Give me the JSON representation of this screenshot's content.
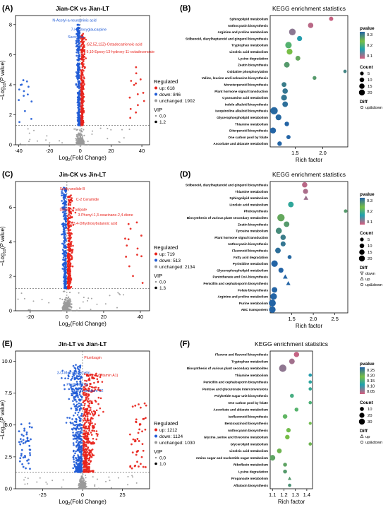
{
  "volcanoes": [
    {
      "panel": "(A)",
      "title": "Jian-CK vs Jian-LT",
      "xticks": [
        "-40",
        "-20",
        "0",
        "20",
        "40"
      ],
      "yticks": [
        "0",
        "2",
        "4",
        "6",
        "8"
      ],
      "xmin": -42,
      "xmax": 45,
      "ymax": 8.6,
      "regulated_title": "Regulated",
      "legend": [
        "up: 618",
        "down: 846",
        "unchanged: 1902"
      ],
      "vip_title": "VIP",
      "vip": [
        "0.0",
        "1.2"
      ],
      "labels": [
        {
          "text": "N-Acetyl-a-neuraminic acid",
          "color": "blue",
          "x": -18,
          "y": 8.2
        },
        {
          "text": "7-Hydroxyglaucarpine",
          "color": "blue",
          "x": -6,
          "y": 7.6
        },
        {
          "text": "Sarcosine",
          "color": "blue",
          "x": -8,
          "y": 7.1
        },
        {
          "text": "(9Z,5Z,12Z)-Octadecatrienoic acid",
          "color": "red",
          "x": 4,
          "y": 6.6
        },
        {
          "text": "9,10-Epoxy-13-hydroxy-11-octadecenoate",
          "color": "red",
          "x": 4,
          "y": 6.1
        }
      ]
    },
    {
      "panel": "(C)",
      "title": "Jin-CK vs Jin-LT",
      "xticks": [
        "-20",
        "0",
        "20",
        "40"
      ],
      "yticks": [
        "0",
        "2",
        "4",
        "6"
      ],
      "xmin": -28,
      "xmax": 45,
      "ymax": 7.5,
      "regulated_title": "Regulated",
      "legend": [
        "up: 719",
        "down: 513",
        "unchanged: 2134"
      ],
      "vip_title": "VIP",
      "vip": [
        "0.0",
        "1.3"
      ],
      "labels": [
        {
          "text": "Senkyunolide B",
          "color": "red",
          "x": -4,
          "y": 7.0
        },
        {
          "text": "C-2 Ceramide",
          "color": "red",
          "x": 5,
          "y": 6.4
        },
        {
          "text": "Dimethyl adipate",
          "color": "red",
          "x": -4,
          "y": 5.8
        },
        {
          "text": "3-Phenyl-1,3-oxazinane-2,4-dione",
          "color": "red",
          "x": 6,
          "y": 5.5
        },
        {
          "text": "(R)-3,4-Dihydroxybutanoic acid",
          "color": "red",
          "x": 0,
          "y": 5.0
        }
      ]
    },
    {
      "panel": "(E)",
      "title": "Jin-LT vs Jian-LT",
      "xticks": [
        "-25",
        "0",
        "25"
      ],
      "yticks": [
        "0.0",
        "2.5",
        "5.0",
        "7.5",
        "10.0"
      ],
      "xmin": -42,
      "xmax": 42,
      "ymax": 10.8,
      "regulated_title": "Regulated",
      "legend": [
        "up: 1212",
        "down: 1124",
        "unchanged: 1030"
      ],
      "vip_title": "VIP",
      "vip": [
        "0.0",
        "1.0"
      ],
      "labels": [
        {
          "text": "Plumbagin",
          "color": "red",
          "x": 1,
          "y": 10.2
        },
        {
          "text": "3-O-Methylquercetin",
          "color": "blue",
          "x": -16,
          "y": 9.0
        },
        {
          "text": "Retinol (Vitamin A1)",
          "color": "red",
          "x": 2,
          "y": 8.8
        },
        {
          "text": "Phellopidin B",
          "color": "blue",
          "x": -10,
          "y": 8.1
        },
        {
          "text": "Tetrasodium C2",
          "color": "blue",
          "x": -3,
          "y": 7.6
        }
      ]
    }
  ],
  "kegg": [
    {
      "panel": "(B)",
      "title": "KEGG enrichment statistics",
      "xlabel": "Rich factor",
      "xticks": [
        "1.5",
        "2.0"
      ],
      "xtick_vals": [
        1.5,
        2.0
      ],
      "xmin": 1.05,
      "xmax": 2.45,
      "pvalue_title": "pvalue",
      "pvalue_ticks": [
        "0.3",
        "0.2",
        "0.1"
      ],
      "count_title": "Count",
      "counts": [
        "5",
        "10",
        "15",
        "20"
      ],
      "diff_title": "Diff",
      "diffs": [
        "up&down"
      ],
      "pathways": [
        {
          "name": "Sphingolipid metabolism",
          "rf": 2.15,
          "count": 4,
          "p": 0.01
        },
        {
          "name": "Anthocyanin biosynthesis",
          "rf": 1.78,
          "count": 8,
          "p": 0.02
        },
        {
          "name": "Arginine and proline metabolism",
          "rf": 1.45,
          "count": 14,
          "p": 0.05
        },
        {
          "name": "Stilbenoid, diarylheptanoid and gingerol biosynthesis",
          "rf": 1.58,
          "count": 7,
          "p": 0.12
        },
        {
          "name": "Tryptophan metabolism",
          "rf": 1.38,
          "count": 13,
          "p": 0.2
        },
        {
          "name": "Linoleic acid metabolism",
          "rf": 1.4,
          "count": 10,
          "p": 0.25
        },
        {
          "name": "Lysine degradation",
          "rf": 1.55,
          "count": 6,
          "p": 0.28
        },
        {
          "name": "Zeatin biosynthesis",
          "rf": 1.35,
          "count": 9,
          "p": 0.3
        },
        {
          "name": "Oxidative phosphorylation",
          "rf": 2.4,
          "count": 2,
          "p": 0.33
        },
        {
          "name": "Valine, leucine and isoleucine biosynthesis",
          "rf": 1.85,
          "count": 3,
          "p": 0.3
        },
        {
          "name": "Monoterpenoid biosynthesis",
          "rf": 1.3,
          "count": 6,
          "p": 0.34
        },
        {
          "name": "Plant hormone signal transduction",
          "rf": 1.32,
          "count": 8,
          "p": 0.35
        },
        {
          "name": "Cyanoamino acid metabolism",
          "rf": 1.3,
          "count": 10,
          "p": 0.35
        },
        {
          "name": "Indole alkaloid biosynthesis",
          "rf": 1.32,
          "count": 9,
          "p": 0.36
        },
        {
          "name": "Isoquinoline alkaloid biosynthesis",
          "rf": 1.12,
          "count": 18,
          "p": 0.37
        },
        {
          "name": "Glycerophospholipid metabolism",
          "rf": 1.2,
          "count": 10,
          "p": 0.37
        },
        {
          "name": "Thiamine metabolism",
          "rf": 1.35,
          "count": 5,
          "p": 0.38
        },
        {
          "name": "Diterpenoid biosynthesis",
          "rf": 1.1,
          "count": 11,
          "p": 0.4
        },
        {
          "name": "One carbon pool by folate",
          "rf": 1.38,
          "count": 4,
          "p": 0.42
        },
        {
          "name": "Ascorbate and aldarate metabolism",
          "rf": 1.22,
          "count": 5,
          "p": 0.44
        }
      ]
    },
    {
      "panel": "(D)",
      "title": "KEGG enrichment statistics",
      "xlabel": "Rich factor",
      "xticks": [
        "1.5",
        "2.0",
        "2.5"
      ],
      "xtick_vals": [
        1.5,
        2.0,
        2.5
      ],
      "xmin": 1.0,
      "xmax": 2.8,
      "pvalue_title": "pvalue",
      "pvalue_ticks": [
        "0.3",
        "0.2",
        "0.1"
      ],
      "count_title": "Count",
      "counts": [
        "5",
        "10",
        "15",
        "20"
      ],
      "diff_title": "Diff",
      "diffs": [
        "down",
        "up",
        "up&down"
      ],
      "pathways": [
        {
          "name": "Stilbenoid, diarylheptanoid and gingerol biosynthesis",
          "rf": 1.8,
          "count": 7,
          "p": 0.02
        },
        {
          "name": "Thiamine metabolism",
          "rf": 1.82,
          "count": 6,
          "p": 0.03
        },
        {
          "name": "Sphingolipid metabolism",
          "rf": 1.83,
          "count": 5,
          "p": 0.04,
          "shape": "tri"
        },
        {
          "name": "Linoleic acid metabolism",
          "rf": 1.48,
          "count": 8,
          "p": 0.15
        },
        {
          "name": "Photosynthesis",
          "rf": 2.75,
          "count": 2,
          "p": 0.3
        },
        {
          "name": "Biosynthesis of various plant secondary metabolites",
          "rf": 1.25,
          "count": 16,
          "p": 0.28
        },
        {
          "name": "Zeatin biosynthesis",
          "rf": 1.38,
          "count": 8,
          "p": 0.3
        },
        {
          "name": "Tyrosine metabolism",
          "rf": 1.2,
          "count": 10,
          "p": 0.32
        },
        {
          "name": "Plant hormone signal transduction",
          "rf": 1.3,
          "count": 7,
          "p": 0.34
        },
        {
          "name": "Anthocyanin biosynthesis",
          "rf": 1.3,
          "count": 6,
          "p": 0.35
        },
        {
          "name": "Flavonoid biosynthesis",
          "rf": 1.18,
          "count": 8,
          "p": 0.36
        },
        {
          "name": "Fatty acid degradation",
          "rf": 1.45,
          "count": 3,
          "p": 0.37
        },
        {
          "name": "Pyrimidine metabolism",
          "rf": 1.1,
          "count": 12,
          "p": 0.38
        },
        {
          "name": "Glycerophospholipid metabolism",
          "rf": 1.25,
          "count": 6,
          "p": 0.38
        },
        {
          "name": "Pantothenate and CoA biosynthesis",
          "rf": 1.35,
          "count": 5,
          "p": 0.39,
          "shape": "tri"
        },
        {
          "name": "Penicillin and cephalosporin biosynthesis",
          "rf": 1.42,
          "count": 4,
          "p": 0.39,
          "shape": "tri"
        },
        {
          "name": "Folate biosynthesis",
          "rf": 1.1,
          "count": 8,
          "p": 0.4
        },
        {
          "name": "Arginine and proline metabolism",
          "rf": 1.08,
          "count": 12,
          "p": 0.41
        },
        {
          "name": "Purine metabolism",
          "rf": 1.05,
          "count": 14,
          "p": 0.42
        },
        {
          "name": "ABC transporters",
          "rf": 1.05,
          "count": 12,
          "p": 0.43
        }
      ]
    },
    {
      "panel": "(F)",
      "title": "KEGG enrichment statistics",
      "xlabel": "Rich factor",
      "xticks": [
        "1.1",
        "1.2",
        "1.3",
        "1.4"
      ],
      "xtick_vals": [
        1.1,
        1.2,
        1.3,
        1.4
      ],
      "xmin": 1.08,
      "xmax": 1.45,
      "pvalue_title": "pvalue",
      "pvalue_ticks": [
        "0.25",
        "0.20",
        "0.15",
        "0.10",
        "0.05"
      ],
      "count_title": "Count",
      "counts": [
        "10",
        "20",
        "30"
      ],
      "diff_title": "Diff",
      "diffs": [
        "up",
        "up&down"
      ],
      "pathways": [
        {
          "name": "Flavone and flavonol biosynthesis",
          "rf": 1.31,
          "count": 12,
          "p": 0.01
        },
        {
          "name": "Tryptophan metabolism",
          "rf": 1.27,
          "count": 14,
          "p": 0.03
        },
        {
          "name": "Biosynthesis of various plant secondary metabolites",
          "rf": 1.19,
          "count": 28,
          "p": 0.04
        },
        {
          "name": "Thiamine metabolism",
          "rf": 1.43,
          "count": 3,
          "p": 0.1
        },
        {
          "name": "Penicillin and cephalosporin biosynthesis",
          "rf": 1.43,
          "count": 3,
          "p": 0.12
        },
        {
          "name": "Pentose and glucuronate interconversions",
          "rf": 1.43,
          "count": 3,
          "p": 0.13
        },
        {
          "name": "Polyketide sugar unit biosynthesis",
          "rf": 1.27,
          "count": 5,
          "p": 0.15
        },
        {
          "name": "One carbon pool by folate",
          "rf": 1.43,
          "count": 3,
          "p": 0.16
        },
        {
          "name": "Ascorbate and aldarate metabolism",
          "rf": 1.31,
          "count": 5,
          "p": 0.17
        },
        {
          "name": "Isoflavonoid biosynthesis",
          "rf": 1.21,
          "count": 8,
          "p": 0.18
        },
        {
          "name": "Benzoxazinoid biosynthesis",
          "rf": 1.43,
          "count": 2,
          "p": 0.2
        },
        {
          "name": "Anthocyanin biosynthesis",
          "rf": 1.24,
          "count": 7,
          "p": 0.2
        },
        {
          "name": "Glycine, serine and threonine metabolism",
          "rf": 1.23,
          "count": 8,
          "p": 0.21
        },
        {
          "name": "Glycerolipid metabolism",
          "rf": 1.43,
          "count": 3,
          "p": 0.22
        },
        {
          "name": "Linoleic acid metabolism",
          "rf": 1.16,
          "count": 9,
          "p": 0.22
        },
        {
          "name": "Amino sugar and nucleotide sugar metabolism",
          "rf": 1.1,
          "count": 14,
          "p": 0.24
        },
        {
          "name": "Riboflavin metabolism",
          "rf": 1.21,
          "count": 5,
          "p": 0.24
        },
        {
          "name": "Lysine degradation",
          "rf": 1.21,
          "count": 5,
          "p": 0.25
        },
        {
          "name": "Propanoate metabolism",
          "rf": 1.25,
          "count": 4,
          "p": 0.25,
          "shape": "tri"
        },
        {
          "name": "Aflatoxin biosynthesis",
          "rf": 1.25,
          "count": 3,
          "p": 0.26
        }
      ]
    }
  ],
  "chart_data": [
    {
      "type": "scatter",
      "title": "Jian-CK vs Jian-LT",
      "xlabel": "Log2(Fold Change)",
      "ylabel": "-Log10(P value)",
      "xlim": [
        -42,
        45
      ],
      "ylim": [
        0,
        8.6
      ],
      "series": [
        {
          "name": "up: 618"
        },
        {
          "name": "down: 846"
        },
        {
          "name": "unchanged: 1902"
        }
      ]
    },
    {
      "type": "scatter",
      "title": "KEGG enrichment statistics",
      "xlabel": "Rich factor"
    },
    {
      "type": "scatter",
      "title": "Jin-CK vs Jin-LT",
      "xlabel": "Log2(Fold Change)",
      "ylabel": "-Log10(P value)",
      "xlim": [
        -28,
        45
      ],
      "ylim": [
        0,
        7.5
      ],
      "series": [
        {
          "name": "up: 719"
        },
        {
          "name": "down: 513"
        },
        {
          "name": "unchanged: 2134"
        }
      ]
    },
    {
      "type": "scatter",
      "title": "KEGG enrichment statistics",
      "xlabel": "Rich factor"
    },
    {
      "type": "scatter",
      "title": "Jin-LT vs Jian-LT",
      "xlabel": "Log2(Fold Change)",
      "ylabel": "-Log10(P value)",
      "xlim": [
        -42,
        42
      ],
      "ylim": [
        0,
        10.8
      ],
      "series": [
        {
          "name": "up: 1212"
        },
        {
          "name": "down: 1124"
        },
        {
          "name": "unchanged: 1030"
        }
      ]
    },
    {
      "type": "scatter",
      "title": "KEGG enrichment statistics",
      "xlabel": "Rich factor"
    }
  ],
  "colors": {
    "up": "#e8211a",
    "down": "#1f5bd6",
    "unchanged": "#9a9a9a"
  }
}
